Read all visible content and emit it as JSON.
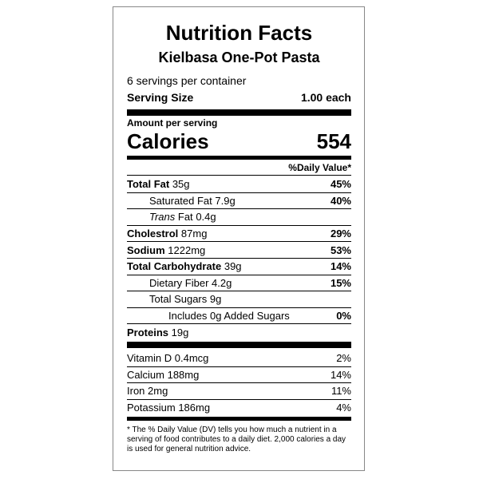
{
  "header": {
    "title": "Nutrition Facts",
    "product": "Kielbasa One-Pot Pasta",
    "servings": "6 servings per container",
    "serving_size_label": "Serving Size",
    "serving_size_value": "1.00 each"
  },
  "calories": {
    "amount_label": "Amount per serving",
    "label": "Calories",
    "value": "554"
  },
  "dv_header": "%Daily Value*",
  "nutrients": [
    {
      "name": "Total Fat",
      "amount": "35g",
      "dv": "45%"
    },
    {
      "name": "Saturated Fat",
      "amount": "7.9g",
      "dv": "40%"
    },
    {
      "name_italic": "Trans",
      "name": "Fat",
      "amount": "0.4g"
    },
    {
      "name": "Cholestrol",
      "amount": "87mg",
      "dv": "29%"
    },
    {
      "name": "Sodium",
      "amount": "1222mg",
      "dv": "53%"
    },
    {
      "name": "Total Carbohydrate",
      "amount": "39g",
      "dv": "14%"
    },
    {
      "name": "Dietary Fiber",
      "amount": "4.2g",
      "dv": "15%"
    },
    {
      "name": "Total Sugars",
      "amount": "9g"
    },
    {
      "name": "Includes 0g Added Sugars",
      "dv": "0%"
    },
    {
      "name": "Proteins",
      "amount": "19g"
    }
  ],
  "vitamins": [
    {
      "name": "Vitamin D",
      "amount": "0.4mcg",
      "dv": "2%"
    },
    {
      "name": "Calcium",
      "amount": "188mg",
      "dv": "14%"
    },
    {
      "name": "Iron",
      "amount": "2mg",
      "dv": "11%"
    },
    {
      "name": "Potassium",
      "amount": "186mg",
      "dv": "4%"
    }
  ],
  "footnote": "* The % Daily Value (DV) tells you how much a nutrient in a serving of food contributes to a daily diet. 2,000 calories a day is used for general nutrition advice."
}
